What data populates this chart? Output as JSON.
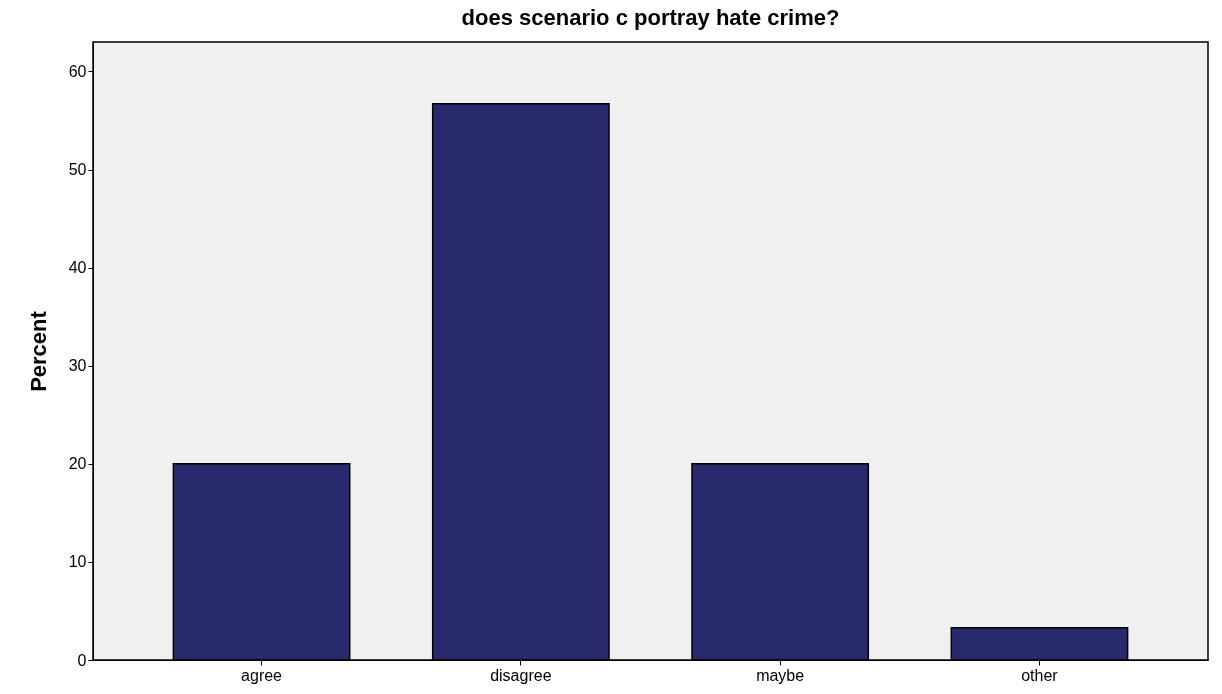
{
  "chart_data": {
    "type": "bar",
    "title": "does scenario c portray hate crime?",
    "ylabel": "Percent",
    "categories": [
      "agree",
      "disagree",
      "maybe",
      "other"
    ],
    "values": [
      20,
      56.7,
      20,
      3.3
    ],
    "color": "#29296e",
    "ylim": [
      0,
      63
    ],
    "yticks": [
      0,
      10,
      20,
      30,
      40,
      50,
      60
    ],
    "grid": false
  }
}
